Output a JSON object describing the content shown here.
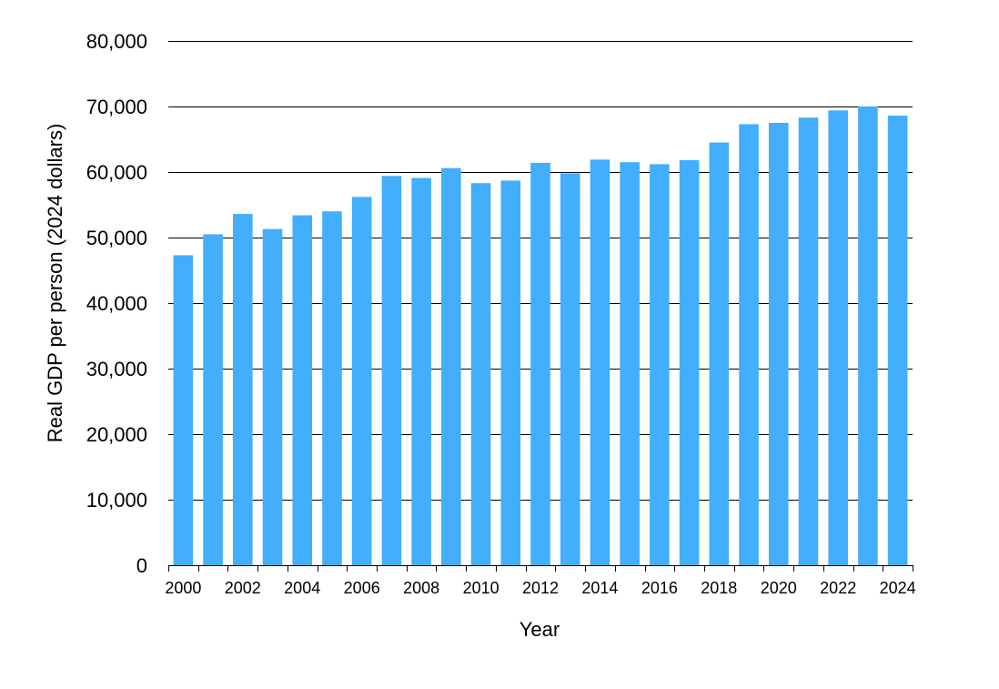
{
  "chart_data": {
    "type": "bar",
    "title": "",
    "xlabel": "Year",
    "ylabel": "Real GDP per person (2024 dollars)",
    "ylim": [
      0,
      80000
    ],
    "y_ticks": [
      0,
      10000,
      20000,
      30000,
      40000,
      50000,
      60000,
      70000,
      80000
    ],
    "y_tick_labels": [
      "0",
      "10,000",
      "20,000",
      "30,000",
      "40,000",
      "50,000",
      "60,000",
      "70,000",
      "80,000"
    ],
    "x_tick_labels": [
      "2000",
      "2002",
      "2004",
      "2006",
      "2008",
      "2010",
      "2012",
      "2014",
      "2016",
      "2018",
      "2020",
      "2022",
      "2024"
    ],
    "categories": [
      "2000",
      "2001",
      "2002",
      "2003",
      "2004",
      "2005",
      "2006",
      "2007",
      "2008",
      "2009",
      "2010",
      "2011",
      "2012",
      "2013",
      "2014",
      "2015",
      "2016",
      "2017",
      "2018",
      "2019",
      "2020",
      "2021",
      "2022",
      "2023",
      "2024"
    ],
    "values": [
      47300,
      50500,
      53600,
      51300,
      53400,
      54000,
      56200,
      59400,
      59100,
      60600,
      58300,
      58700,
      61400,
      59800,
      61900,
      61500,
      61200,
      61800,
      64500,
      67300,
      67500,
      68300,
      69400,
      70000,
      68600
    ],
    "grid": true,
    "legend": "none",
    "colors": {
      "bar": "#42aefc",
      "grid": "#000000",
      "axis": "#000000",
      "text": "#000000"
    }
  }
}
